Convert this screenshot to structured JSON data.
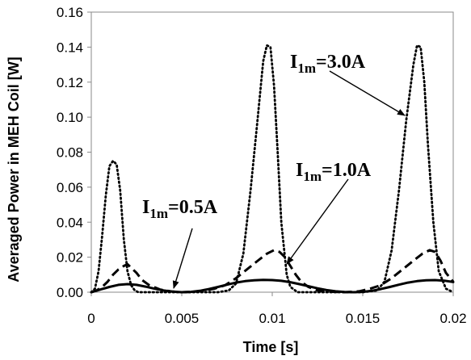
{
  "chart_data": {
    "type": "line",
    "xlabel": "Time [s]",
    "ylabel": "Averaged Power in MEH Coil [W]",
    "xlim": [
      0,
      0.02
    ],
    "ylim": [
      0,
      0.16
    ],
    "xticks": [
      0,
      0.005,
      0.01,
      0.015,
      0.02
    ],
    "xtick_labels": [
      "0",
      "0.005",
      "0.01",
      "0.015",
      "0.02"
    ],
    "yticks": [
      0,
      0.02,
      0.04,
      0.06,
      0.08,
      0.1,
      0.12,
      0.14,
      0.16
    ],
    "ytick_labels": [
      "0.00",
      "0.02",
      "0.04",
      "0.06",
      "0.08",
      "0.10",
      "0.12",
      "0.14",
      "0.16"
    ],
    "grid": false,
    "legend": false,
    "series": [
      {
        "style": "dotted",
        "x": [
          0,
          0.0002,
          0.0004,
          0.0006,
          0.0008,
          0.001,
          0.0012,
          0.0014,
          0.0016,
          0.0018,
          0.002,
          0.0022,
          0.0024,
          0.0026,
          0.003,
          0.004,
          0.005,
          0.006,
          0.007,
          0.0076,
          0.008,
          0.0084,
          0.0088,
          0.0092,
          0.0095,
          0.0097,
          0.0099,
          0.0101,
          0.0103,
          0.0105,
          0.0108,
          0.011,
          0.0114,
          0.012,
          0.013,
          0.014,
          0.015,
          0.0158,
          0.0162,
          0.0166,
          0.017,
          0.0174,
          0.0178,
          0.018,
          0.0182,
          0.0184,
          0.0186,
          0.0189,
          0.0192,
          0.0196,
          0.02
        ],
        "y": [
          0,
          0.002,
          0.012,
          0.032,
          0.055,
          0.072,
          0.075,
          0.073,
          0.058,
          0.03,
          0.012,
          0.004,
          0.001,
          0,
          0,
          0,
          0,
          0,
          0,
          0.001,
          0.005,
          0.022,
          0.058,
          0.1,
          0.132,
          0.141,
          0.14,
          0.118,
          0.08,
          0.04,
          0.01,
          0.003,
          0,
          0,
          0,
          0,
          0,
          0.001,
          0.006,
          0.024,
          0.058,
          0.098,
          0.13,
          0.141,
          0.14,
          0.12,
          0.085,
          0.04,
          0.012,
          0.002,
          0
        ]
      },
      {
        "style": "dashed",
        "x": [
          0,
          0.0003,
          0.0006,
          0.0009,
          0.0012,
          0.0015,
          0.0018,
          0.002,
          0.0022,
          0.0025,
          0.0028,
          0.0032,
          0.0038,
          0.0045,
          0.005,
          0.0055,
          0.0062,
          0.0068,
          0.0074,
          0.008,
          0.0086,
          0.0092,
          0.0097,
          0.0101,
          0.0104,
          0.0107,
          0.011,
          0.0113,
          0.0116,
          0.012,
          0.0125,
          0.013,
          0.014,
          0.0148,
          0.0154,
          0.016,
          0.0166,
          0.0172,
          0.0178,
          0.0183,
          0.0187,
          0.019,
          0.0193,
          0.0196,
          0.02
        ],
        "y": [
          0,
          0.001,
          0.003,
          0.006,
          0.01,
          0.013,
          0.015,
          0.016,
          0.014,
          0.011,
          0.007,
          0.004,
          0.0015,
          0.0003,
          0,
          0.0002,
          0.0008,
          0.002,
          0.004,
          0.008,
          0.013,
          0.018,
          0.022,
          0.024,
          0.023,
          0.02,
          0.015,
          0.01,
          0.006,
          0.003,
          0.001,
          0.0003,
          0,
          0.0005,
          0.002,
          0.004,
          0.008,
          0.013,
          0.018,
          0.022,
          0.024,
          0.023,
          0.018,
          0.011,
          0.006
        ]
      },
      {
        "style": "solid",
        "x": [
          0,
          0.0005,
          0.001,
          0.0015,
          0.002,
          0.0025,
          0.003,
          0.0035,
          0.004,
          0.0045,
          0.005,
          0.0055,
          0.006,
          0.0065,
          0.007,
          0.0075,
          0.008,
          0.0085,
          0.009,
          0.0095,
          0.01,
          0.0105,
          0.011,
          0.0115,
          0.012,
          0.0125,
          0.013,
          0.0135,
          0.014,
          0.0145,
          0.015,
          0.0155,
          0.016,
          0.0165,
          0.017,
          0.0175,
          0.018,
          0.0185,
          0.019,
          0.0195,
          0.02
        ],
        "y": [
          0,
          0.0015,
          0.003,
          0.0042,
          0.0046,
          0.0042,
          0.0032,
          0.002,
          0.001,
          0.0003,
          0,
          0.0002,
          0.0008,
          0.0018,
          0.003,
          0.0043,
          0.0055,
          0.0063,
          0.0068,
          0.007,
          0.0069,
          0.0065,
          0.0057,
          0.0046,
          0.0034,
          0.0022,
          0.0012,
          0.0005,
          0.0001,
          0,
          0.0002,
          0.0008,
          0.0018,
          0.003,
          0.0043,
          0.0055,
          0.0063,
          0.0068,
          0.0069,
          0.0066,
          0.0058
        ]
      }
    ],
    "annotations": [
      {
        "base": "I",
        "sub": "1m",
        "text": "=3.0A"
      },
      {
        "base": "I",
        "sub": "1m",
        "text": "=1.0A"
      },
      {
        "base": "I",
        "sub": "1m",
        "text": "=0.5A"
      }
    ]
  }
}
